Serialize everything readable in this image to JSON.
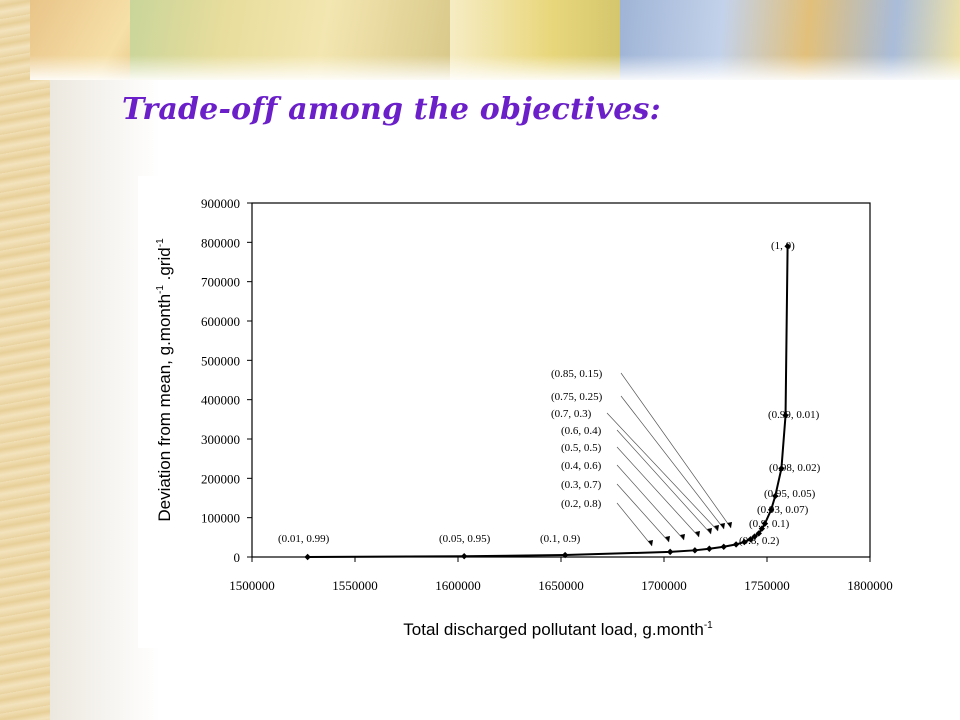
{
  "slide": {
    "title": "Trade-off among the objectives:"
  },
  "theme": {
    "title_color": "#6a1fc9"
  },
  "chart_data": {
    "type": "line",
    "xlabel": "Total discharged pollutant  load, g.month",
    "xlabel_sup": "-1",
    "ylabel": "Deviation from mean, g.month",
    "ylabel_sup1": "-1",
    "ylabel_mid": ".grid",
    "ylabel_sup2": "-1",
    "xlim": [
      1500000,
      1800000
    ],
    "ylim": [
      0,
      900000
    ],
    "xticks": [
      1500000,
      1550000,
      1600000,
      1650000,
      1700000,
      1750000,
      1800000
    ],
    "yticks": [
      0,
      100000,
      200000,
      300000,
      400000,
      500000,
      600000,
      700000,
      800000,
      900000
    ],
    "grid": false,
    "legend": "none",
    "series": [
      {
        "x": [
          1527000,
          1603000,
          1652000,
          1703000,
          1715000,
          1722000,
          1729000,
          1735000,
          1739000,
          1742000,
          1744000,
          1746000,
          1747500,
          1749000,
          1752000,
          1754000,
          1757000,
          1759000,
          1760000
        ],
        "y": [
          0,
          2000,
          5000,
          13000,
          17000,
          21000,
          26000,
          32000,
          38000,
          45000,
          52000,
          60000,
          72000,
          85000,
          120000,
          155000,
          225000,
          360000,
          790000
        ]
      }
    ],
    "annotations": [
      {
        "text": "(0.01, 0.99)",
        "x": 1527000,
        "y": 0
      },
      {
        "text": "(0.05, 0.95)",
        "x": 1603000,
        "y": 2000
      },
      {
        "text": "(0.1, 0.9)",
        "x": 1652000,
        "y": 5000
      },
      {
        "text": "(0.2, 0.8)"
      },
      {
        "text": "(0.3, 0.7)"
      },
      {
        "text": "(0.4, 0.6)"
      },
      {
        "text": "(0.5, 0.5)"
      },
      {
        "text": "(0.6, 0.4)"
      },
      {
        "text": "(0.7, 0.3)"
      },
      {
        "text": "(0.75, 0.25)"
      },
      {
        "text": "(0.85, 0.15)"
      },
      {
        "text": "(0.8, 0.2)"
      },
      {
        "text": "(0.9, 0.1)"
      },
      {
        "text": "(0.93, 0.07)"
      },
      {
        "text": "(0.95, 0.05)"
      },
      {
        "text": "(0.98, 0.02)"
      },
      {
        "text": "(0.99, 0.01)"
      },
      {
        "text": "(1, 0)",
        "x": 1760000,
        "y": 790000
      }
    ]
  }
}
